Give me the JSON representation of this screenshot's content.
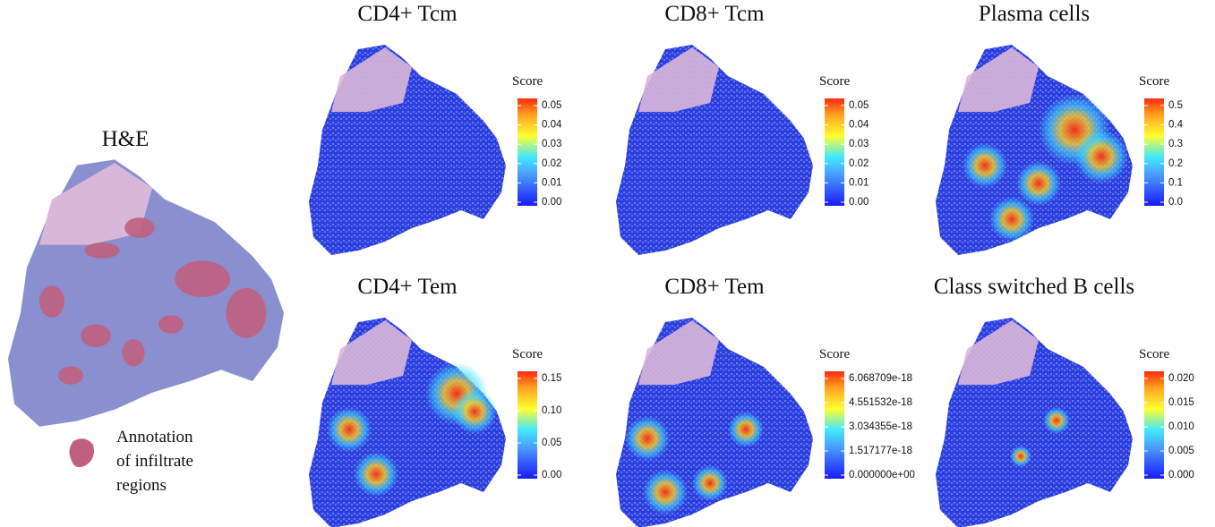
{
  "he_panel": {
    "title": "H&E",
    "annotation": [
      "Annotation",
      "of infiltrate",
      "regions"
    ]
  },
  "panels": [
    {
      "title": "CD4+ Tcm",
      "legend_title": "Score",
      "ticks": [
        "0.05",
        "0.04",
        "0.03",
        "0.02",
        "0.01",
        "0.00"
      ]
    },
    {
      "title": "CD8+ Tcm",
      "legend_title": "Score",
      "ticks": [
        "0.05",
        "0.04",
        "0.03",
        "0.02",
        "0.01",
        "0.00"
      ]
    },
    {
      "title": "Plasma cells",
      "legend_title": "Score",
      "ticks": [
        "0.5",
        "0.4",
        "0.3",
        "0.2",
        "0.1",
        "0.0"
      ]
    },
    {
      "title": "CD4+ Tem",
      "legend_title": "Score",
      "ticks": [
        "0.15",
        "0.10",
        "0.05",
        "0.00"
      ]
    },
    {
      "title": "CD8+ Tem",
      "legend_title": "Score",
      "ticks": [
        "6.068709e-18",
        "4.551532e-18",
        "3.034355e-18",
        "1.517177e-18",
        "0.000000e+00"
      ]
    },
    {
      "title": "Class switched B cells",
      "legend_title": "Score",
      "ticks": [
        "0.020",
        "0.015",
        "0.010",
        "0.005",
        "0.000"
      ]
    }
  ]
}
